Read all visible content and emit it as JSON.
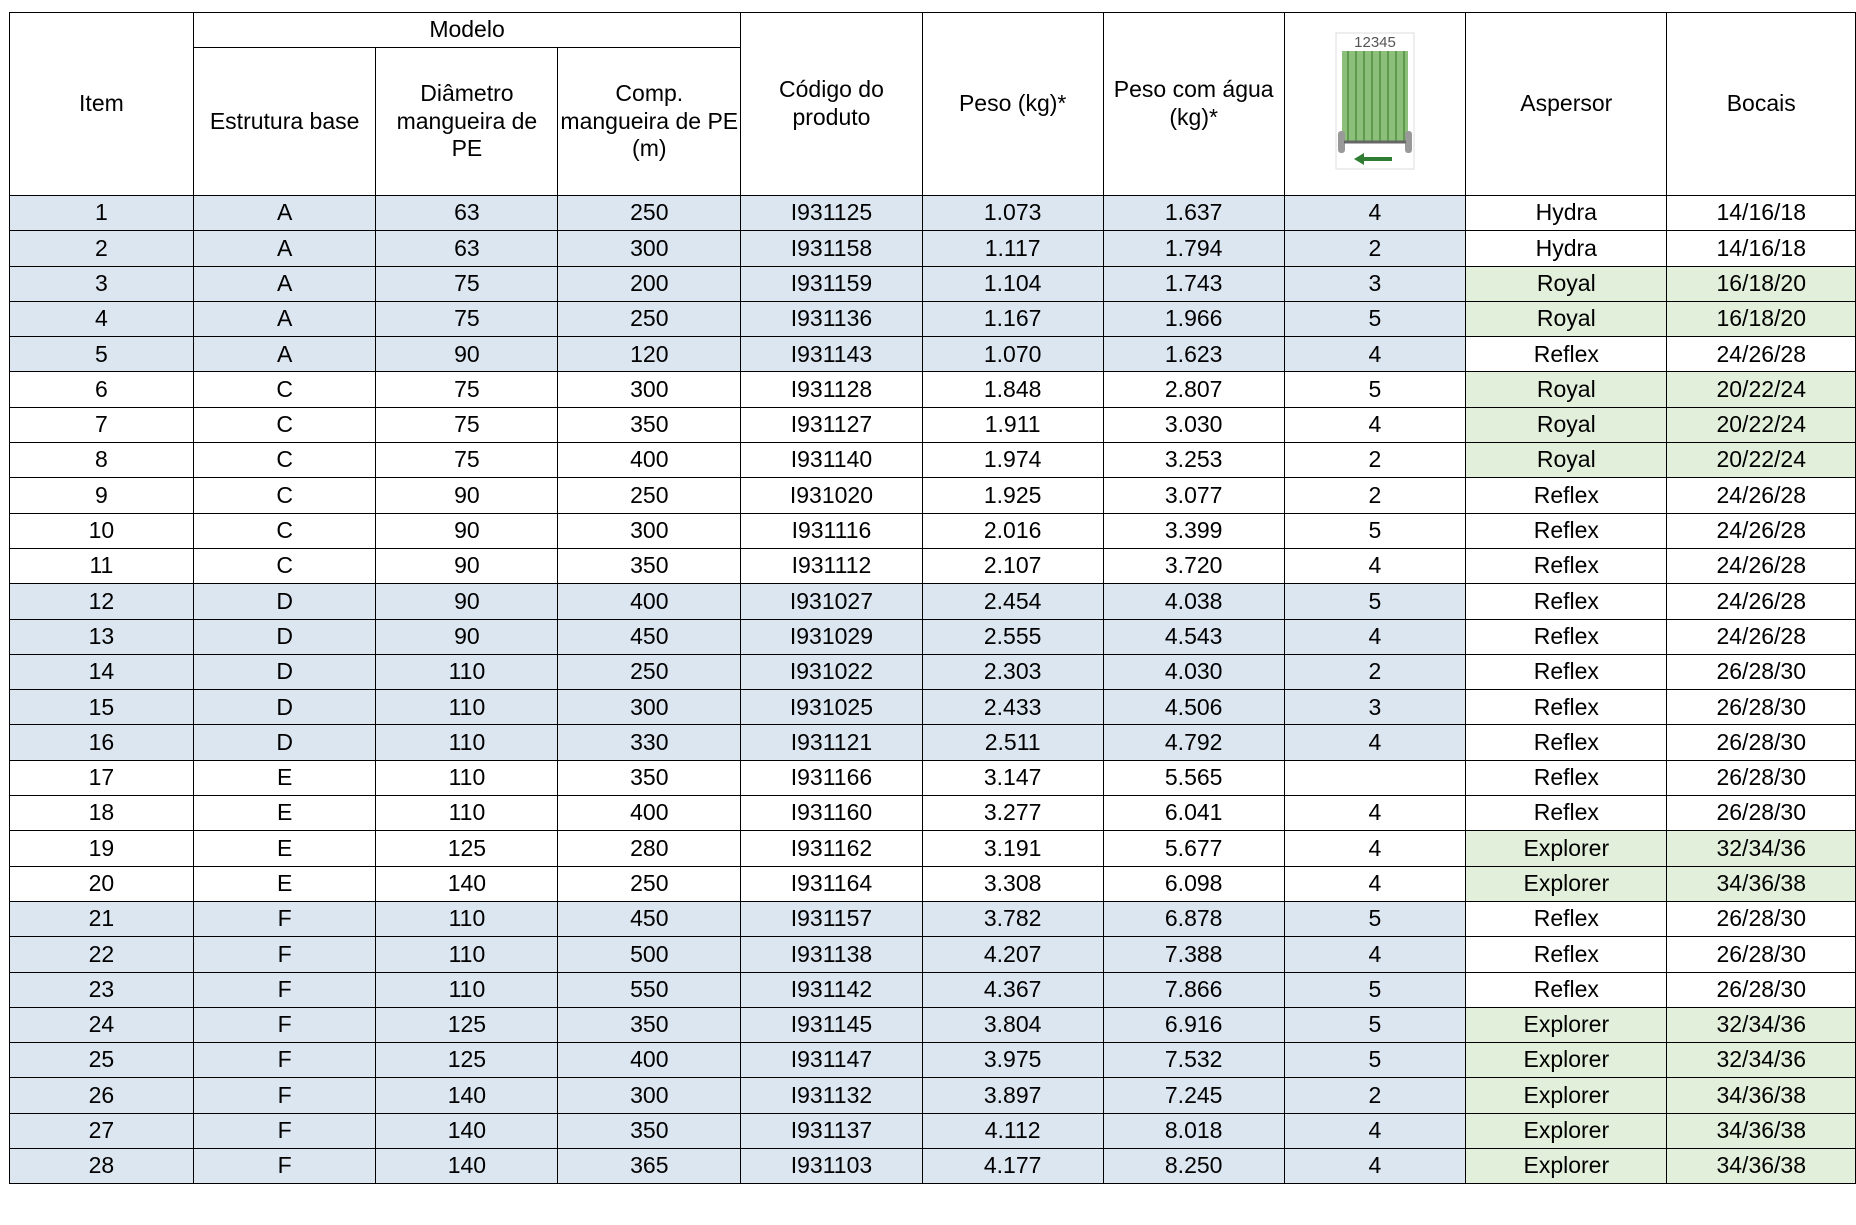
{
  "table": {
    "headers": {
      "item": "Item",
      "modelo": "Modelo",
      "estrutura": "Estrutura base",
      "diametro": "Diâmetro mangueira de PE",
      "comprimento": "Comp. mangueira de PE (m)",
      "codigo": "Código do produto",
      "peso": "Peso (kg)*",
      "peso_agua": "Peso com água (kg)*",
      "icon_label": "12345",
      "aspersor": "Aspersor",
      "bocais": "Bocais"
    },
    "rows": [
      [
        1,
        "A",
        63,
        250,
        "I931125",
        "1.073",
        "1.637",
        4,
        "Hydra",
        "14/16/18"
      ],
      [
        2,
        "A",
        63,
        300,
        "I931158",
        "1.117",
        "1.794",
        2,
        "Hydra",
        "14/16/18"
      ],
      [
        3,
        "A",
        75,
        200,
        "I931159",
        "1.104",
        "1.743",
        3,
        "Royal",
        "16/18/20"
      ],
      [
        4,
        "A",
        75,
        250,
        "I931136",
        "1.167",
        "1.966",
        5,
        "Royal",
        "16/18/20"
      ],
      [
        5,
        "A",
        90,
        120,
        "I931143",
        "1.070",
        "1.623",
        4,
        "Reflex",
        "24/26/28"
      ],
      [
        6,
        "C",
        75,
        300,
        "I931128",
        "1.848",
        "2.807",
        5,
        "Royal",
        "20/22/24"
      ],
      [
        7,
        "C",
        75,
        350,
        "I931127",
        "1.911",
        "3.030",
        4,
        "Royal",
        "20/22/24"
      ],
      [
        8,
        "C",
        75,
        400,
        "I931140",
        "1.974",
        "3.253",
        2,
        "Royal",
        "20/22/24"
      ],
      [
        9,
        "C",
        90,
        250,
        "I931020",
        "1.925",
        "3.077",
        2,
        "Reflex",
        "24/26/28"
      ],
      [
        10,
        "C",
        90,
        300,
        "I931116",
        "2.016",
        "3.399",
        5,
        "Reflex",
        "24/26/28"
      ],
      [
        11,
        "C",
        90,
        350,
        "I931112",
        "2.107",
        "3.720",
        4,
        "Reflex",
        "24/26/28"
      ],
      [
        12,
        "D",
        90,
        400,
        "I931027",
        "2.454",
        "4.038",
        5,
        "Reflex",
        "24/26/28"
      ],
      [
        13,
        "D",
        90,
        450,
        "I931029",
        "2.555",
        "4.543",
        4,
        "Reflex",
        "24/26/28"
      ],
      [
        14,
        "D",
        110,
        250,
        "I931022",
        "2.303",
        "4.030",
        2,
        "Reflex",
        "26/28/30"
      ],
      [
        15,
        "D",
        110,
        300,
        "I931025",
        "2.433",
        "4.506",
        3,
        "Reflex",
        "26/28/30"
      ],
      [
        16,
        "D",
        110,
        330,
        "I931121",
        "2.511",
        "4.792",
        4,
        "Reflex",
        "26/28/30"
      ],
      [
        17,
        "E",
        110,
        350,
        "I931166",
        "3.147",
        "5.565",
        null,
        "Reflex",
        "26/28/30"
      ],
      [
        18,
        "E",
        110,
        400,
        "I931160",
        "3.277",
        "6.041",
        4,
        "Reflex",
        "26/28/30"
      ],
      [
        19,
        "E",
        125,
        280,
        "I931162",
        "3.191",
        "5.677",
        4,
        "Explorer",
        "32/34/36"
      ],
      [
        20,
        "E",
        140,
        250,
        "I931164",
        "3.308",
        "6.098",
        4,
        "Explorer",
        "34/36/38"
      ],
      [
        21,
        "F",
        110,
        450,
        "I931157",
        "3.782",
        "6.878",
        5,
        "Reflex",
        "26/28/30"
      ],
      [
        22,
        "F",
        110,
        500,
        "I931138",
        "4.207",
        "7.388",
        4,
        "Reflex",
        "26/28/30"
      ],
      [
        23,
        "F",
        110,
        550,
        "I931142",
        "4.367",
        "7.866",
        5,
        "Reflex",
        "26/28/30"
      ],
      [
        24,
        "F",
        125,
        350,
        "I931145",
        "3.804",
        "6.916",
        5,
        "Explorer",
        "32/34/36"
      ],
      [
        25,
        "F",
        125,
        400,
        "I931147",
        "3.975",
        "7.532",
        5,
        "Explorer",
        "32/34/36"
      ],
      [
        26,
        "F",
        140,
        300,
        "I931132",
        "3.897",
        "7.245",
        2,
        "Explorer",
        "34/36/38"
      ],
      [
        27,
        "F",
        140,
        350,
        "I931137",
        "4.112",
        "8.018",
        4,
        "Explorer",
        "34/36/38"
      ],
      [
        28,
        "F",
        140,
        365,
        "I931103",
        "4.177",
        "8.250",
        4,
        "Explorer",
        "34/36/38"
      ]
    ],
    "row_fill": [
      "#dce6f1",
      "#dce6f1",
      "#dce6f1",
      "#dce6f1",
      "#dce6f1",
      "#ffffff",
      "#ffffff",
      "#ffffff",
      "#ffffff",
      "#ffffff",
      "#ffffff",
      "#dce6f1",
      "#dce6f1",
      "#dce6f1",
      "#dce6f1",
      "#dce6f1",
      "#ffffff",
      "#ffffff",
      "#ffffff",
      "#ffffff",
      "#dce6f1",
      "#dce6f1",
      "#dce6f1",
      "#dce6f1",
      "#dce6f1",
      "#dce6f1",
      "#dce6f1",
      "#dce6f1"
    ],
    "sprinkler_fill": [
      "#ffffff",
      "#ffffff",
      "#e2efda",
      "#e2efda",
      "#ffffff",
      "#e2efda",
      "#e2efda",
      "#e2efda",
      "#ffffff",
      "#ffffff",
      "#ffffff",
      "#ffffff",
      "#ffffff",
      "#ffffff",
      "#ffffff",
      "#ffffff",
      "#ffffff",
      "#ffffff",
      "#e2efda",
      "#e2efda",
      "#ffffff",
      "#ffffff",
      "#ffffff",
      "#e2efda",
      "#e2efda",
      "#e2efda",
      "#e2efda",
      "#e2efda"
    ]
  }
}
